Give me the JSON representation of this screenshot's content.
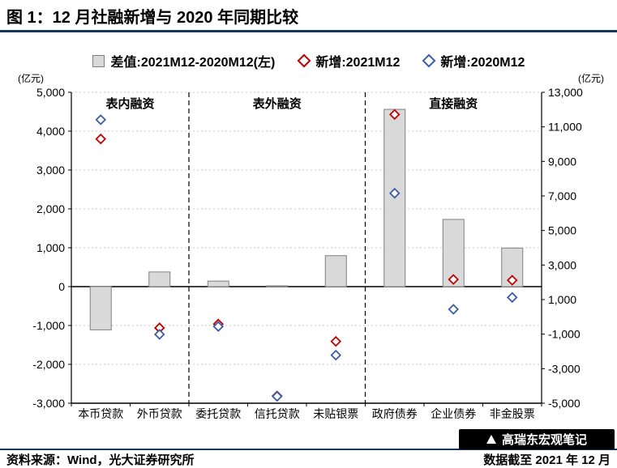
{
  "header": {
    "title": "图 1：12 月社融新增与 2020 年同期比较"
  },
  "legend": {
    "items": [
      {
        "label": "差值:2021M12-2020M12(左)",
        "marker": "square",
        "fill": "#D9D9D9",
        "border": "#7F7F7F"
      },
      {
        "label": "新增:2021M12",
        "marker": "diamond",
        "color": "#C00000"
      },
      {
        "label": "新增:2020M12",
        "marker": "diamond",
        "color": "#3B5CA8"
      }
    ]
  },
  "axes": {
    "left_unit": "(亿元)",
    "right_unit": "(亿元)"
  },
  "footer": {
    "source": "资料来源：Wind，光大证券研究所",
    "note": "数据截至 2021 年 12 月",
    "badge": "高瑞东宏观笔记"
  },
  "chart_data": {
    "type": "bar",
    "title": "图 1：12 月社融新增与 2020 年同期比较",
    "categories": [
      "本币贷款",
      "外币贷款",
      "委托贷款",
      "信托贷款",
      "未贴银票",
      "政府债券",
      "企业债券",
      "非金股票"
    ],
    "sections": [
      {
        "label": "表内融资",
        "span": [
          0,
          1
        ]
      },
      {
        "label": "表外融资",
        "span": [
          2,
          4
        ]
      },
      {
        "label": "直接融资",
        "span": [
          5,
          7
        ]
      }
    ],
    "series": [
      {
        "name": "差值:2021M12-2020M12(左)",
        "type": "bar",
        "axis": "left",
        "color": "#D9D9D9",
        "border": "#808080",
        "values": [
          -1112,
          378,
          143,
          21,
          797,
          4562,
          1730,
          993
        ]
      },
      {
        "name": "新增:2021M12",
        "type": "scatter",
        "marker": "diamond",
        "axis": "right",
        "color": "#C00000",
        "values": [
          10300,
          -638,
          -416,
          -4580,
          -1419,
          11718,
          2167,
          2118
        ]
      },
      {
        "name": "新增:2020M12",
        "type": "scatter",
        "marker": "diamond",
        "axis": "right",
        "color": "#3B5CA8",
        "values": [
          11412,
          -1016,
          -559,
          -4601,
          -2216,
          7156,
          437,
          1125
        ]
      }
    ],
    "left_axis": {
      "unit": "(亿元)",
      "min": -3000,
      "max": 5000,
      "step": 1000
    },
    "right_axis": {
      "unit": "(亿元)",
      "min": -5000,
      "max": 13000,
      "step": 2000
    },
    "grid": "dotted-horizontal",
    "legend_position": "top"
  }
}
